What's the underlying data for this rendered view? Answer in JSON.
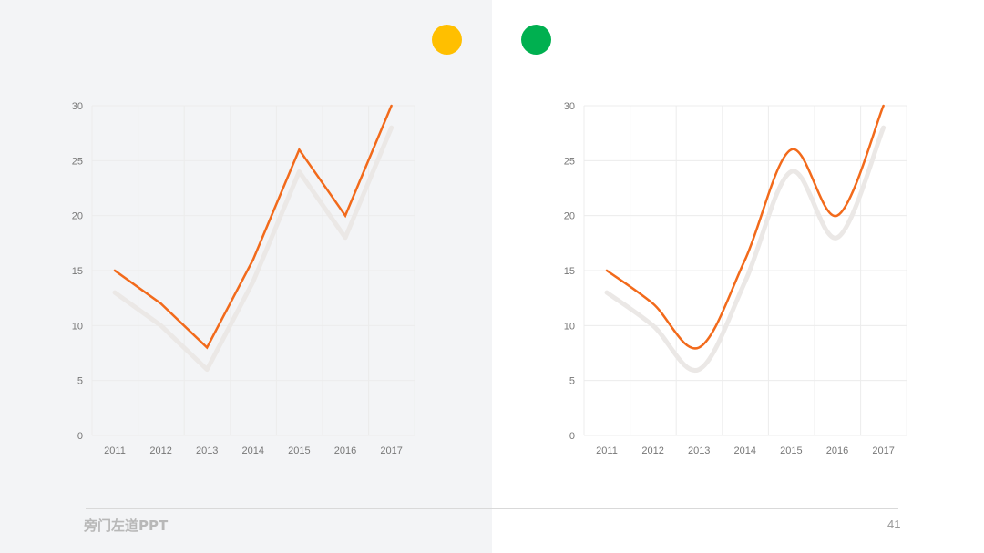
{
  "colors": {
    "left_background": "#f3f4f6",
    "right_background": "#ffffff",
    "line": "#f26a1b",
    "shadow": "#ebe8e6",
    "grid": "#ececec",
    "accent_yellow": "#ffbf00",
    "accent_green": "#00b050"
  },
  "decor": [
    {
      "name": "yellow-dot",
      "color": "#ffbf00"
    },
    {
      "name": "green-dot",
      "color": "#00b050"
    }
  ],
  "chart_data": [
    {
      "type": "line",
      "smooth": false,
      "x": [
        "2011",
        "2012",
        "2013",
        "2014",
        "2015",
        "2016",
        "2017"
      ],
      "values": [
        15,
        12,
        8,
        16,
        26,
        20,
        30
      ],
      "shadow_values": [
        13,
        10,
        6,
        14,
        24,
        18,
        28
      ],
      "yticks": [
        "0",
        "5",
        "10",
        "15",
        "20",
        "25",
        "30"
      ],
      "ylim": [
        0,
        30
      ],
      "grid": true,
      "title": "",
      "xlabel": "",
      "ylabel": ""
    },
    {
      "type": "line",
      "smooth": true,
      "x": [
        "2011",
        "2012",
        "2013",
        "2014",
        "2015",
        "2016",
        "2017"
      ],
      "values": [
        15,
        12,
        8,
        16,
        26,
        20,
        30
      ],
      "shadow_values": [
        13,
        10,
        6,
        14,
        24,
        18,
        28
      ],
      "yticks": [
        "0",
        "5",
        "10",
        "15",
        "20",
        "25",
        "30"
      ],
      "ylim": [
        0,
        30
      ],
      "grid": true,
      "title": "",
      "xlabel": "",
      "ylabel": ""
    }
  ],
  "footer": {
    "brand": "旁门左道PPT",
    "page_number": "41"
  }
}
